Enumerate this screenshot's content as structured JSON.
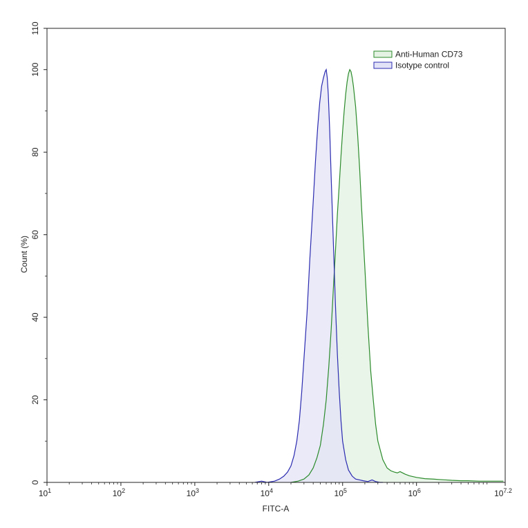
{
  "chart_data": {
    "type": "area",
    "xlabel": "FITC-A",
    "ylabel": "Count  (%)",
    "x_scale": "log",
    "xlim": [
      10,
      15848931.92
    ],
    "ylim": [
      0,
      110
    ],
    "grid": false,
    "legend_placement": "top-right",
    "x_ticks": [
      {
        "value": 10,
        "base": "10",
        "exp": "1"
      },
      {
        "value": 100,
        "base": "10",
        "exp": "2"
      },
      {
        "value": 1000,
        "base": "10",
        "exp": "3"
      },
      {
        "value": 10000,
        "base": "10",
        "exp": "4"
      },
      {
        "value": 100000,
        "base": "10",
        "exp": "5"
      },
      {
        "value": 1000000,
        "base": "10",
        "exp": "6"
      },
      {
        "value": 15848931.92,
        "base": "10",
        "exp": "7.2"
      }
    ],
    "y_ticks": [
      {
        "value": 0,
        "label": "0"
      },
      {
        "value": 20,
        "label": "20"
      },
      {
        "value": 40,
        "label": "40"
      },
      {
        "value": 60,
        "label": "60"
      },
      {
        "value": 80,
        "label": "80"
      },
      {
        "value": 100,
        "label": "100"
      },
      {
        "value": 110,
        "label": "110"
      }
    ],
    "series": [
      {
        "name": "Anti-Human CD73",
        "stroke": "#2a8a2a",
        "fill": "#e3f2e3",
        "x": [
          20000,
          25000,
          30000,
          35000,
          40000,
          45000,
          50000,
          55000,
          60000,
          65000,
          70000,
          75000,
          80000,
          85000,
          90000,
          95000,
          100000,
          105000,
          110000,
          115000,
          120000,
          125000,
          130000,
          135000,
          140000,
          150000,
          160000,
          170000,
          180000,
          200000,
          220000,
          240000,
          260000,
          280000,
          300000,
          350000,
          400000,
          450000,
          500000,
          550000,
          600000,
          700000,
          800000,
          1000000,
          1300000,
          1700000,
          2000000,
          2500000,
          3000000,
          4000000,
          5000000,
          7000000,
          10000000,
          15000000
        ],
        "y": [
          0,
          0.3,
          0.8,
          1.8,
          3.5,
          6,
          9,
          14,
          20,
          28,
          37,
          47,
          56,
          65,
          72,
          79,
          85,
          90,
          94,
          97,
          99,
          100,
          99.5,
          98,
          96,
          91,
          84,
          76,
          67,
          52,
          38,
          27,
          20,
          14,
          10,
          5.5,
          3.5,
          2.8,
          2.5,
          2.3,
          2.6,
          2,
          1.6,
          1.2,
          0.9,
          0.8,
          0.7,
          0.6,
          0.5,
          0.4,
          0.4,
          0.3,
          0.3,
          0.3
        ]
      },
      {
        "name": "Isotype control",
        "stroke": "#2a2ab0",
        "fill": "#e3e3f7",
        "x": [
          6500,
          8000,
          9500,
          12000,
          14000,
          16000,
          18000,
          20000,
          22000,
          24000,
          26000,
          28000,
          30000,
          33000,
          36000,
          40000,
          43000,
          46000,
          49000,
          52000,
          55000,
          58000,
          60000,
          62000,
          64000,
          67000,
          70000,
          75000,
          80000,
          85000,
          90000,
          95000,
          100000,
          110000,
          120000,
          135000,
          150000,
          170000,
          190000,
          220000,
          250000,
          280000,
          320000,
          350000
        ],
        "y": [
          0,
          0.3,
          0,
          0.3,
          0.8,
          1.5,
          2.5,
          4,
          6.5,
          10,
          15,
          22,
          30,
          41,
          54,
          68,
          78,
          86,
          92,
          96,
          98,
          99.5,
          100,
          98,
          94,
          85,
          74,
          58,
          43,
          31,
          22,
          15,
          10,
          5.5,
          3,
          1.5,
          0.8,
          0.6,
          0.4,
          0.2,
          0.6,
          0.2,
          0,
          0
        ]
      }
    ]
  }
}
